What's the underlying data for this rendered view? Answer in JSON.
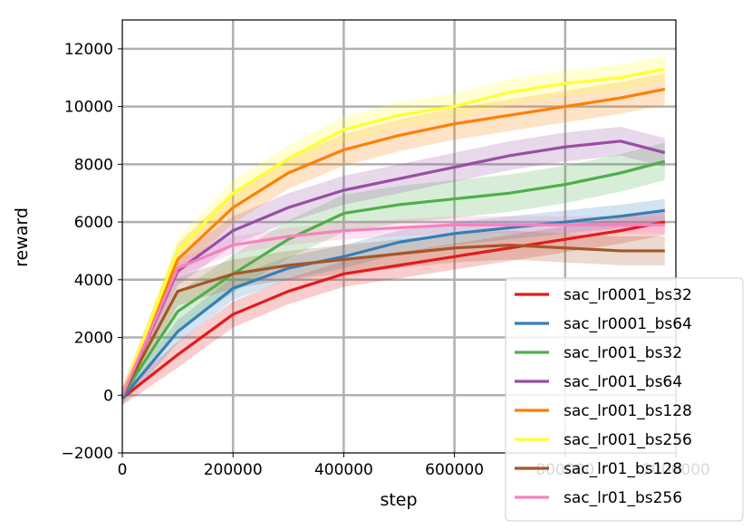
{
  "chart_data": {
    "type": "line",
    "title": "",
    "xlabel": "step",
    "ylabel": "reward",
    "xlim": [
      0,
      1000000
    ],
    "ylim": [
      -2000,
      13000
    ],
    "x_ticks": [
      0,
      200000,
      400000,
      600000,
      800000,
      1000000
    ],
    "x_tick_labels": [
      "0",
      "200000",
      "400000",
      "600000",
      "800000",
      "1000000"
    ],
    "y_ticks": [
      -2000,
      0,
      2000,
      4000,
      6000,
      8000,
      10000,
      12000
    ],
    "y_tick_labels": [
      "−2000",
      "0",
      "2000",
      "4000",
      "6000",
      "8000",
      "10000",
      "12000"
    ],
    "grid": true,
    "legend_position": "bottom-right",
    "x": [
      0,
      100000,
      200000,
      300000,
      400000,
      500000,
      600000,
      700000,
      800000,
      900000,
      980000
    ],
    "series": [
      {
        "name": "sac_lr0001_bs32",
        "color": "#e41a1c",
        "values": [
          -100,
          1400,
          2800,
          3600,
          4200,
          4500,
          4800,
          5100,
          5400,
          5700,
          6000
        ],
        "band": 450
      },
      {
        "name": "sac_lr0001_bs64",
        "color": "#377eb8",
        "values": [
          -100,
          2200,
          3700,
          4400,
          4800,
          5300,
          5600,
          5800,
          6000,
          6200,
          6400
        ],
        "band": 400
      },
      {
        "name": "sac_lr001_bs32",
        "color": "#4daf4a",
        "values": [
          0,
          2900,
          4200,
          5400,
          6300,
          6600,
          6800,
          7000,
          7300,
          7700,
          8100
        ],
        "band": 650
      },
      {
        "name": "sac_lr001_bs64",
        "color": "#984ea3",
        "values": [
          0,
          4300,
          5700,
          6500,
          7100,
          7500,
          7900,
          8300,
          8600,
          8800,
          8400
        ],
        "band": 500
      },
      {
        "name": "sac_lr001_bs128",
        "color": "#ff7f00",
        "values": [
          0,
          4700,
          6500,
          7700,
          8500,
          9000,
          9400,
          9700,
          10000,
          10300,
          10600
        ],
        "band": 550
      },
      {
        "name": "sac_lr001_bs256",
        "color": "#ffff33",
        "values": [
          0,
          5000,
          7000,
          8200,
          9200,
          9700,
          10000,
          10500,
          10800,
          11000,
          11300
        ],
        "band": 450
      },
      {
        "name": "sac_lr01_bs128",
        "color": "#a65628",
        "values": [
          0,
          3600,
          4200,
          4500,
          4700,
          4900,
          5100,
          5200,
          5100,
          5000,
          5000
        ],
        "band": 500
      },
      {
        "name": "sac_lr01_bs256",
        "color": "#f781bf",
        "values": [
          0,
          4400,
          5200,
          5500,
          5700,
          5800,
          5900,
          5900,
          5900,
          5900,
          5900
        ],
        "band": 300
      }
    ]
  }
}
